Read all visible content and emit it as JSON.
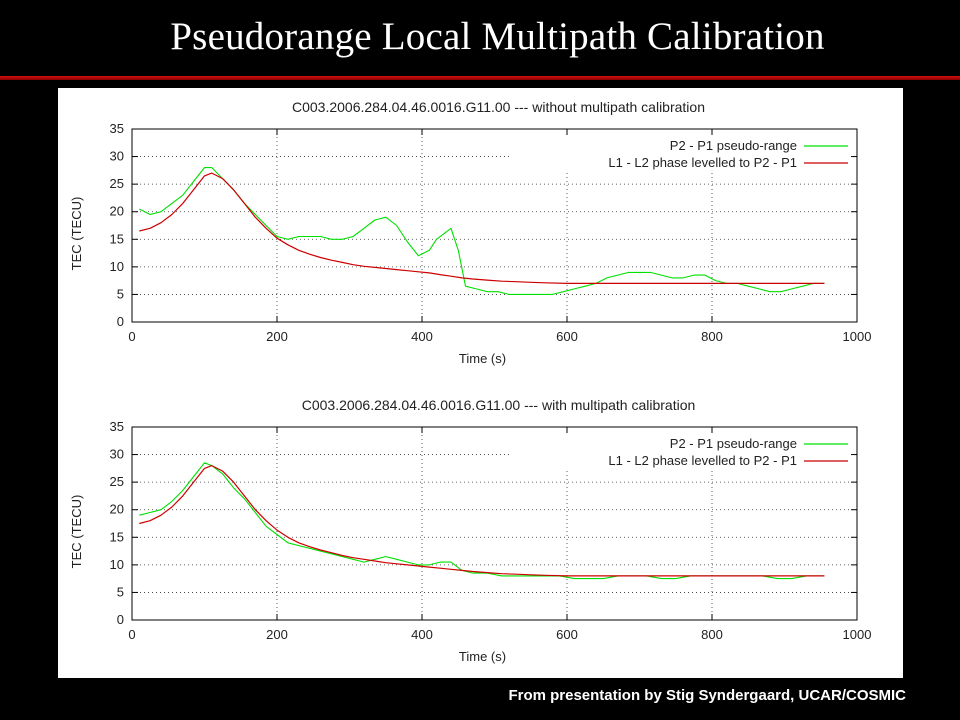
{
  "slide": {
    "title": "Pseudorange Local Multipath Calibration",
    "footer": "From presentation by Stig Syndergaard, UCAR/COSMIC",
    "accent_color": "#c00000",
    "background": "#000000"
  },
  "chart_data": [
    {
      "type": "line",
      "title": "C003.2006.284.04.46.0016.G11.00 --- without multipath calibration",
      "xlabel": "Time (s)",
      "ylabel": "TEC (TECU)",
      "xlim": [
        0,
        1000
      ],
      "ylim": [
        0,
        35
      ],
      "xticks": [
        0,
        200,
        400,
        600,
        800,
        1000
      ],
      "yticks": [
        0,
        5,
        10,
        15,
        20,
        25,
        30,
        35
      ],
      "grid": true,
      "legend_position": "top-right",
      "series": [
        {
          "name": "P2 - P1 pseudo-range",
          "color": "#00e000",
          "x": [
            10,
            25,
            40,
            55,
            70,
            85,
            100,
            110,
            125,
            140,
            155,
            170,
            185,
            200,
            215,
            230,
            245,
            260,
            275,
            290,
            305,
            320,
            335,
            350,
            365,
            380,
            395,
            410,
            420,
            430,
            440,
            450,
            460,
            475,
            490,
            505,
            520,
            535,
            550,
            565,
            580,
            595,
            610,
            625,
            640,
            655,
            670,
            685,
            700,
            715,
            730,
            745,
            760,
            775,
            790,
            805,
            820,
            835,
            850,
            865,
            880,
            895,
            910,
            925,
            940,
            955
          ],
          "y": [
            20.5,
            19.5,
            20,
            21.5,
            23,
            25.5,
            28,
            28,
            26,
            24,
            21.5,
            19.5,
            17.5,
            15.5,
            15,
            15.5,
            15.5,
            15.5,
            15,
            15,
            15.5,
            17,
            18.5,
            19,
            17.5,
            14.5,
            12,
            13,
            15,
            16,
            17,
            13,
            6.5,
            6,
            5.5,
            5.5,
            5,
            5,
            5,
            5,
            5,
            5.5,
            6,
            6.5,
            7,
            8,
            8.5,
            9,
            9,
            9,
            8.5,
            8,
            8,
            8.5,
            8.5,
            7.5,
            7,
            7,
            6.5,
            6,
            5.5,
            5.5,
            6,
            6.5,
            7,
            7
          ]
        },
        {
          "name": "L1 - L2 phase levelled to P2 - P1",
          "color": "#cc0000",
          "x": [
            10,
            25,
            40,
            55,
            70,
            85,
            100,
            110,
            125,
            140,
            155,
            170,
            185,
            200,
            215,
            230,
            245,
            260,
            275,
            290,
            305,
            320,
            335,
            350,
            365,
            380,
            395,
            410,
            425,
            440,
            455,
            470,
            490,
            510,
            530,
            550,
            570,
            600,
            650,
            700,
            750,
            800,
            850,
            900,
            955
          ],
          "y": [
            16.5,
            17,
            18,
            19.5,
            21.5,
            24,
            26.5,
            27,
            26,
            24,
            21.5,
            19,
            17,
            15.2,
            14,
            13,
            12.3,
            11.7,
            11.2,
            10.8,
            10.4,
            10.1,
            9.9,
            9.7,
            9.5,
            9.3,
            9.1,
            8.9,
            8.6,
            8.3,
            8,
            7.8,
            7.6,
            7.4,
            7.3,
            7.2,
            7.1,
            7,
            7,
            7,
            7,
            7,
            7,
            7,
            7
          ]
        }
      ]
    },
    {
      "type": "line",
      "title": "C003.2006.284.04.46.0016.G11.00 --- with multipath calibration",
      "xlabel": "Time (s)",
      "ylabel": "TEC (TECU)",
      "xlim": [
        0,
        1000
      ],
      "ylim": [
        0,
        35
      ],
      "xticks": [
        0,
        200,
        400,
        600,
        800,
        1000
      ],
      "yticks": [
        0,
        5,
        10,
        15,
        20,
        25,
        30,
        35
      ],
      "grid": true,
      "legend_position": "top-right",
      "series": [
        {
          "name": "P2 - P1 pseudo-range",
          "color": "#00e000",
          "x": [
            10,
            25,
            40,
            55,
            70,
            85,
            100,
            110,
            125,
            140,
            155,
            170,
            185,
            200,
            215,
            230,
            245,
            260,
            275,
            290,
            305,
            320,
            335,
            350,
            365,
            380,
            395,
            410,
            425,
            440,
            455,
            470,
            490,
            510,
            530,
            550,
            570,
            590,
            610,
            630,
            650,
            670,
            690,
            710,
            730,
            750,
            770,
            790,
            810,
            830,
            850,
            870,
            890,
            910,
            930,
            955
          ],
          "y": [
            19,
            19.5,
            20,
            21.5,
            23.5,
            26,
            28.5,
            28,
            26.5,
            24,
            22,
            19.5,
            17,
            15.5,
            14,
            13.5,
            13,
            12.5,
            12,
            11.5,
            11,
            10.5,
            11,
            11.5,
            11,
            10.5,
            10,
            10,
            10.5,
            10.5,
            9,
            8.5,
            8.5,
            8,
            8,
            8,
            8,
            8,
            7.5,
            7.5,
            7.5,
            8,
            8,
            8,
            7.5,
            7.5,
            8,
            8,
            8,
            8,
            8,
            8,
            7.5,
            7.5,
            8,
            8
          ]
        },
        {
          "name": "L1 - L2 phase levelled to P2 - P1",
          "color": "#cc0000",
          "x": [
            10,
            25,
            40,
            55,
            70,
            85,
            100,
            110,
            125,
            140,
            155,
            170,
            185,
            200,
            215,
            230,
            245,
            260,
            275,
            290,
            305,
            320,
            335,
            350,
            365,
            380,
            395,
            410,
            425,
            440,
            455,
            470,
            490,
            510,
            530,
            550,
            570,
            600,
            650,
            700,
            750,
            800,
            850,
            900,
            955
          ],
          "y": [
            17.5,
            18,
            19,
            20.5,
            22.5,
            25,
            27.5,
            28,
            27,
            25,
            22.5,
            20,
            18,
            16.3,
            15,
            14,
            13.3,
            12.7,
            12.2,
            11.7,
            11.3,
            11,
            10.7,
            10.4,
            10.2,
            10,
            9.8,
            9.6,
            9.4,
            9.2,
            9,
            8.8,
            8.6,
            8.4,
            8.3,
            8.2,
            8.1,
            8,
            8,
            8,
            8,
            8,
            8,
            8,
            8
          ]
        }
      ]
    }
  ]
}
